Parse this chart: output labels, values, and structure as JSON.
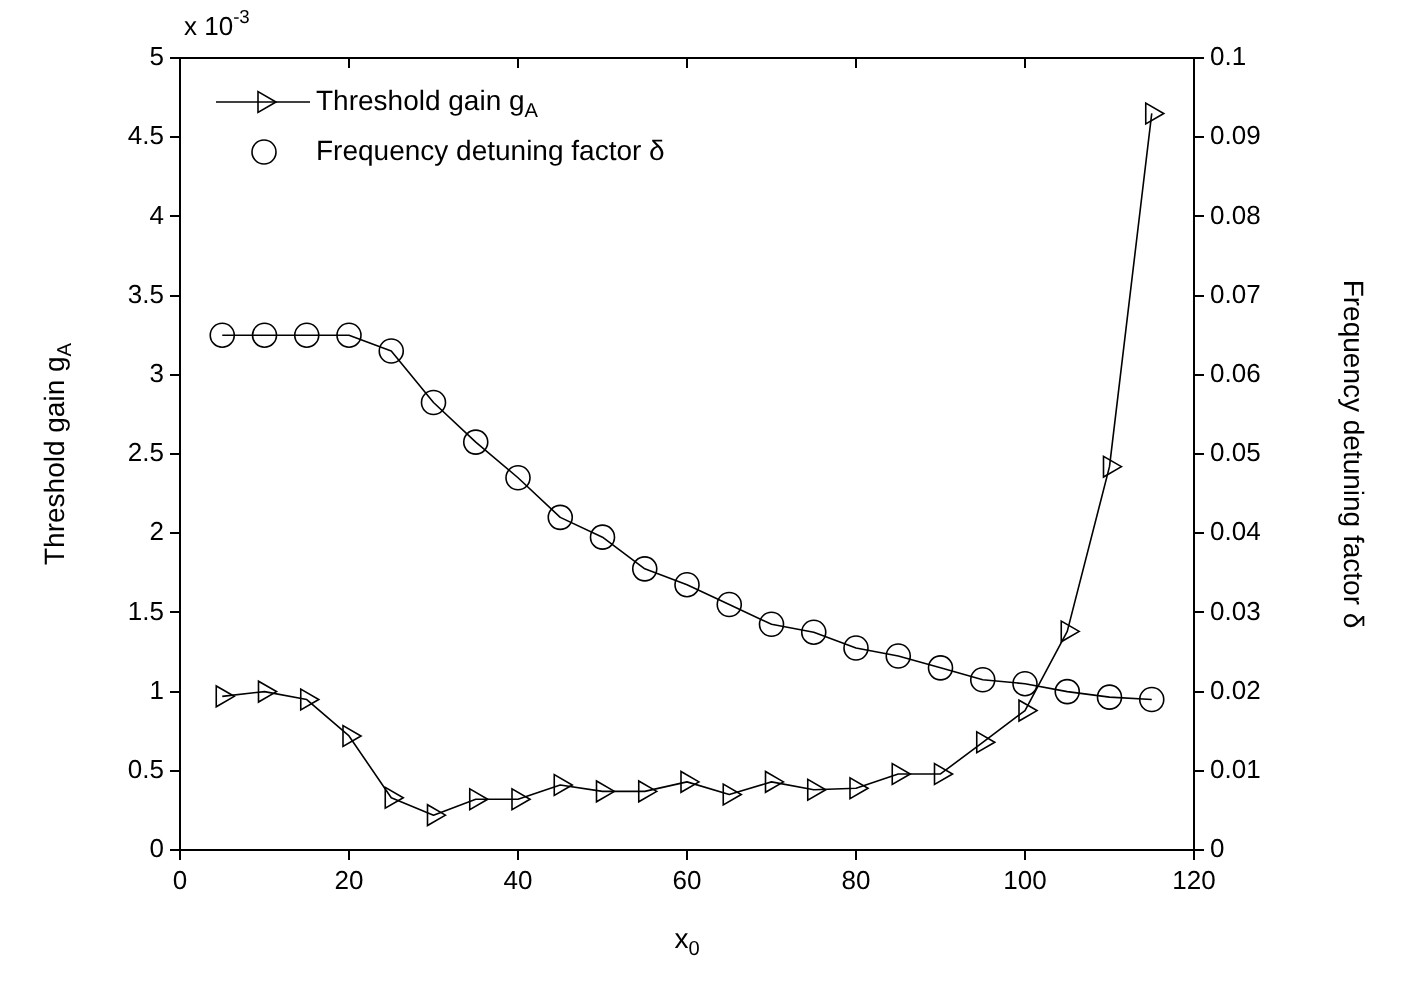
{
  "chart_data": {
    "type": "line",
    "xlabel": "x$_{0}$",
    "ylabel": "Threshold gain g$_{A}$",
    "y2label": "Frequency detuning factor δ",
    "annotations": [
      "x 10$^{-3}$"
    ],
    "x": [
      5,
      10,
      15,
      20,
      25,
      30,
      35,
      40,
      45,
      50,
      55,
      60,
      65,
      70,
      75,
      80,
      85,
      90,
      95,
      100,
      105,
      110,
      115
    ],
    "series": [
      {
        "name": "Threshold gain g$_{A}$",
        "color": "#000000",
        "marker": "triangle",
        "values": [
          0.97,
          1.0,
          0.95,
          0.72,
          0.33,
          0.22,
          0.32,
          0.32,
          0.41,
          0.37,
          0.37,
          0.43,
          0.35,
          0.43,
          0.38,
          0.39,
          0.48,
          0.48,
          0.68,
          0.88,
          1.38,
          2.42,
          4.65
        ]
      },
      {
        "name": "Frequency detuning factor δ",
        "color": "#000000",
        "marker": "circle",
        "axis": "y2",
        "values": [
          0.065,
          0.065,
          0.065,
          0.065,
          0.063,
          0.0565,
          0.0515,
          0.047,
          0.042,
          0.0395,
          0.0355,
          0.0335,
          0.031,
          0.0285,
          0.0275,
          0.0255,
          0.0245,
          0.023,
          0.0215,
          0.021,
          0.02,
          0.0193,
          0.019
        ]
      }
    ],
    "xlim": [
      0,
      120
    ],
    "xticks": [
      0,
      20,
      40,
      60,
      80,
      100,
      120
    ],
    "ylim": [
      0,
      5
    ],
    "yticks": [
      0,
      0.5,
      1,
      1.5,
      2,
      2.5,
      3,
      3.5,
      4,
      4.5,
      5
    ],
    "y2lim": [
      0,
      0.1
    ],
    "y2ticks": [
      0,
      0.01,
      0.02,
      0.03,
      0.04,
      0.05,
      0.06,
      0.07,
      0.08,
      0.09,
      0.1
    ],
    "legend": "top left",
    "grid": false,
    "line_style": "solid"
  }
}
